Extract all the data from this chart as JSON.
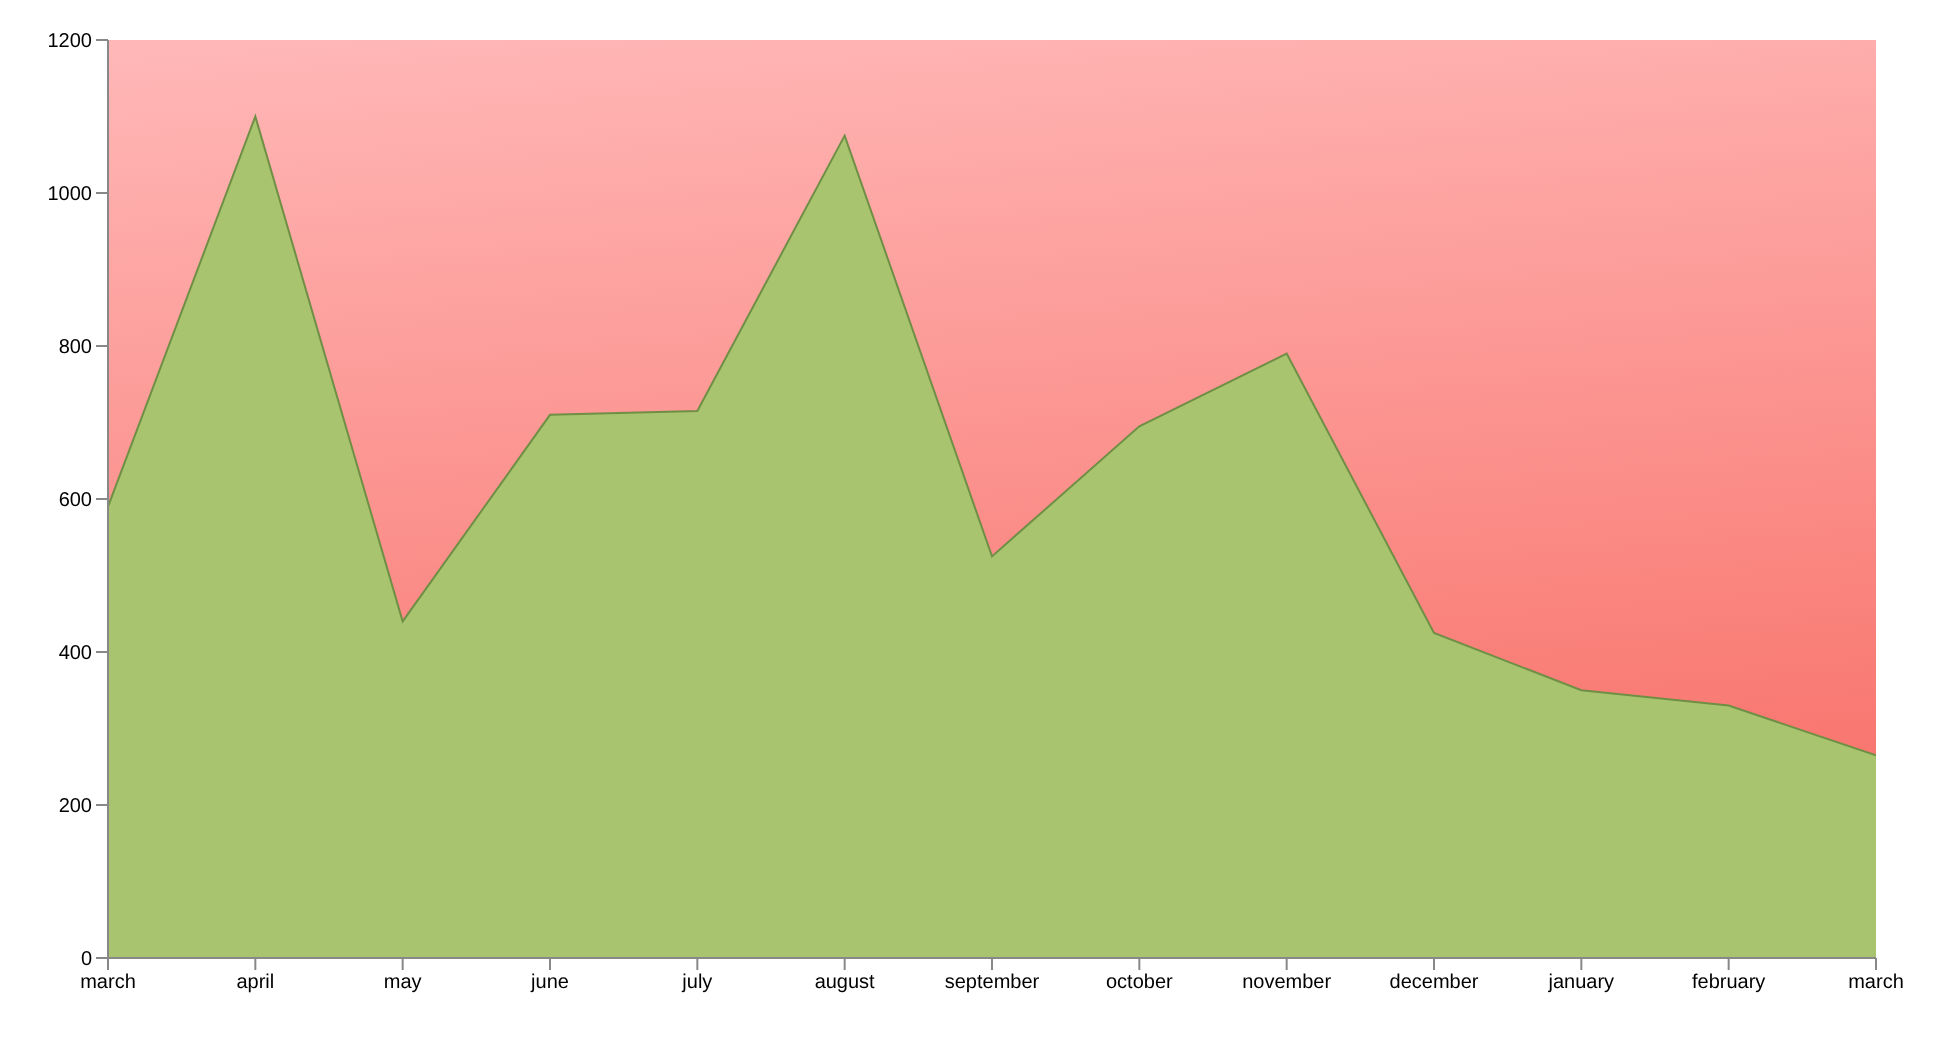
{
  "chart_data": {
    "type": "area",
    "categories": [
      "march",
      "april",
      "may",
      "june",
      "july",
      "august",
      "september",
      "october",
      "november",
      "december",
      "january",
      "february",
      "march"
    ],
    "series": [
      {
        "color": "#a9c46f",
        "values": [
          590,
          1100,
          440,
          710,
          715,
          1075,
          525,
          695,
          790,
          425,
          350,
          330,
          265
        ]
      }
    ],
    "ylim": [
      0,
      1200
    ],
    "yticks": [
      0,
      200,
      400,
      600,
      800,
      1000,
      1200
    ],
    "grid": false,
    "legend": false
  }
}
